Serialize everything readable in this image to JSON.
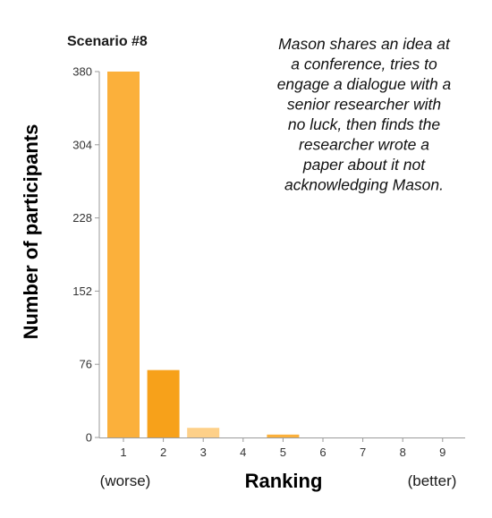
{
  "chart_data": {
    "type": "bar",
    "title": "Scenario #8",
    "annotation": "Mason shares an idea at a conference, tries to engage a dialogue with a senior researcher with no luck, then finds the researcher wrote a paper about it not acknowledging Mason.",
    "annotation_lines": [
      "Mason shares an idea at",
      "a conference, tries to",
      "engage a dialogue with a",
      "senior researcher with",
      "no luck, then finds the",
      "researcher wrote a",
      "paper about it not",
      "acknowledging Mason."
    ],
    "xlabel": "Ranking",
    "ylabel": "Number of participants",
    "x_left_note": "(worse)",
    "x_right_note": "(better)",
    "categories": [
      "1",
      "2",
      "3",
      "4",
      "5",
      "6",
      "7",
      "8",
      "9"
    ],
    "values": [
      380,
      70,
      10,
      0,
      3,
      0,
      0,
      0,
      0
    ],
    "bar_colors": [
      "#fbb03b",
      "#f7a11a",
      "#fdd089",
      "#fbb03b",
      "#fbb03b",
      "#fbb03b",
      "#fbb03b",
      "#fbb03b",
      "#fbb03b"
    ],
    "yticks": [
      "380",
      "304",
      "228",
      "152",
      "76",
      "0"
    ],
    "ylim": [
      0,
      380
    ],
    "grid": false
  }
}
